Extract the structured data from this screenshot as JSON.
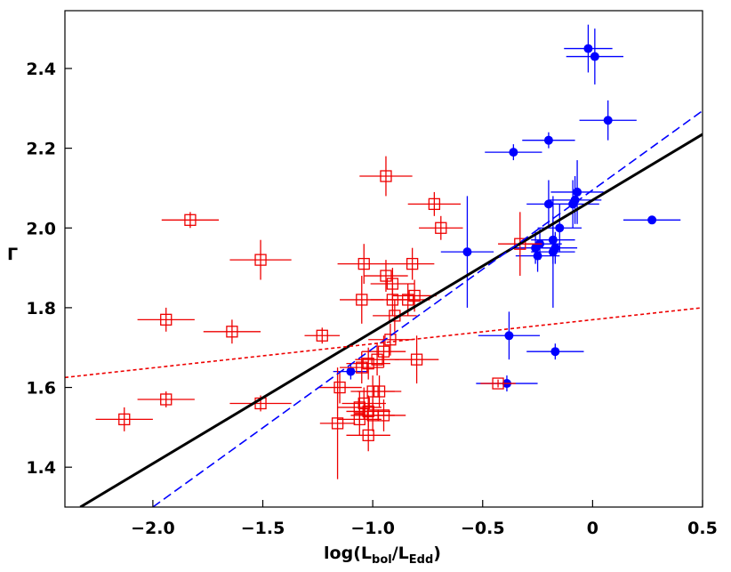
{
  "chart_data": {
    "type": "scatter",
    "xlabel": [
      "log(L",
      "bol",
      "/L",
      "Edd",
      ")"
    ],
    "ylabel": "Γ",
    "xlim": [
      -2.4,
      0.5
    ],
    "ylim": [
      1.3,
      2.545
    ],
    "xticks": [
      {
        "value": -2,
        "label": "−2.0"
      },
      {
        "value": -1.5,
        "label": "−1.5"
      },
      {
        "value": -1,
        "label": "−1.0"
      },
      {
        "value": -0.5,
        "label": "−0.5"
      },
      0,
      0.5
    ],
    "yticks": [
      1.4,
      1.6,
      1.8,
      {
        "value": 2,
        "label": "2.0"
      },
      2.2,
      2.4
    ],
    "series": [
      {
        "kind": "errorbar",
        "marker": "circle",
        "color": "#0000ff",
        "x": [
          -0.02,
          0.01,
          0.07,
          -0.2,
          -0.36,
          -0.07,
          -0.08,
          -0.09,
          -0.2,
          0.27,
          -0.57,
          -0.15,
          -0.18,
          -0.24,
          -0.26,
          -0.25,
          -0.18,
          -0.17,
          -0.38,
          -0.17,
          -0.39,
          -1.1
        ],
        "values": [
          2.45,
          2.43,
          2.27,
          2.22,
          2.19,
          2.09,
          2.07,
          2.06,
          2.06,
          2.02,
          1.94,
          2.0,
          1.97,
          1.96,
          1.95,
          1.93,
          1.94,
          1.95,
          1.73,
          1.69,
          1.61,
          1.64
        ],
        "xerr": [
          0.11,
          0.13,
          0.13,
          0.12,
          0.13,
          0.12,
          0.12,
          0.12,
          0.1,
          0.13,
          0.12,
          0.1,
          0.1,
          0.1,
          0.1,
          0.1,
          0.1,
          0.1,
          0.14,
          0.13,
          0.14,
          0.08
        ],
        "yerr": [
          0.06,
          0.07,
          0.05,
          0.02,
          0.02,
          0.08,
          0.06,
          0.06,
          0.06,
          0.01,
          0.14,
          0.06,
          0.06,
          0.04,
          0.04,
          0.04,
          0.14,
          0.04,
          0.06,
          0.02,
          0.02,
          0.02
        ]
      },
      {
        "kind": "errorbar",
        "marker": "square",
        "color": "#ee0000",
        "x": [
          -0.94,
          -0.72,
          -0.69,
          -1.83,
          -1.51,
          -1.04,
          -0.82,
          -0.94,
          -0.91,
          -1.05,
          -0.81,
          -0.84,
          -0.91,
          -1.94,
          -1.64,
          -1.23,
          -0.9,
          -0.92,
          -0.95,
          -0.98,
          -0.8,
          -1.02,
          -1.05,
          -1.15,
          -1.0,
          -0.97,
          -1.04,
          -1.06,
          -1.02,
          -1.0,
          -1.06,
          -0.95,
          -1.94,
          -1.51,
          -2.13,
          -1.16,
          -1.02,
          -0.43,
          -0.33
        ],
        "values": [
          2.13,
          2.06,
          2.0,
          2.02,
          1.92,
          1.91,
          1.91,
          1.88,
          1.86,
          1.82,
          1.83,
          1.82,
          1.82,
          1.77,
          1.74,
          1.73,
          1.78,
          1.72,
          1.69,
          1.67,
          1.67,
          1.66,
          1.65,
          1.6,
          1.59,
          1.59,
          1.56,
          1.55,
          1.54,
          1.53,
          1.52,
          1.53,
          1.57,
          1.56,
          1.52,
          1.51,
          1.48,
          1.61,
          1.96
        ],
        "xerr": [
          0.12,
          0.12,
          0.1,
          0.13,
          0.14,
          0.12,
          0.1,
          0.1,
          0.1,
          0.1,
          0.1,
          0.1,
          0.1,
          0.13,
          0.13,
          0.08,
          0.1,
          0.1,
          0.1,
          0.1,
          0.1,
          0.1,
          0.1,
          0.1,
          0.1,
          0.1,
          0.1,
          0.1,
          0.1,
          0.1,
          0.1,
          0.1,
          0.13,
          0.14,
          0.13,
          0.08,
          0.1,
          0.08,
          0.1
        ],
        "yerr": [
          0.05,
          0.03,
          0.03,
          0.02,
          0.05,
          0.05,
          0.04,
          0.04,
          0.04,
          0.06,
          0.04,
          0.04,
          0.04,
          0.03,
          0.03,
          0.02,
          0.04,
          0.04,
          0.04,
          0.04,
          0.06,
          0.04,
          0.04,
          0.04,
          0.04,
          0.04,
          0.04,
          0.04,
          0.04,
          0.04,
          0.04,
          0.04,
          0.02,
          0.02,
          0.03,
          0.14,
          0.04,
          0.01,
          0.08
        ]
      },
      {
        "kind": "line",
        "style": "solid",
        "color": "#000000",
        "x": [
          -2.33,
          0.5
        ],
        "values": [
          1.3,
          2.235
        ]
      },
      {
        "kind": "line",
        "style": "dashed",
        "color": "#0000ff",
        "x": [
          -2.0,
          0.5
        ],
        "values": [
          1.3,
          2.294
        ]
      },
      {
        "kind": "line",
        "style": "dotted",
        "color": "#ee0000",
        "x": [
          -2.4,
          0.5
        ],
        "values": [
          1.625,
          1.8
        ]
      }
    ]
  }
}
